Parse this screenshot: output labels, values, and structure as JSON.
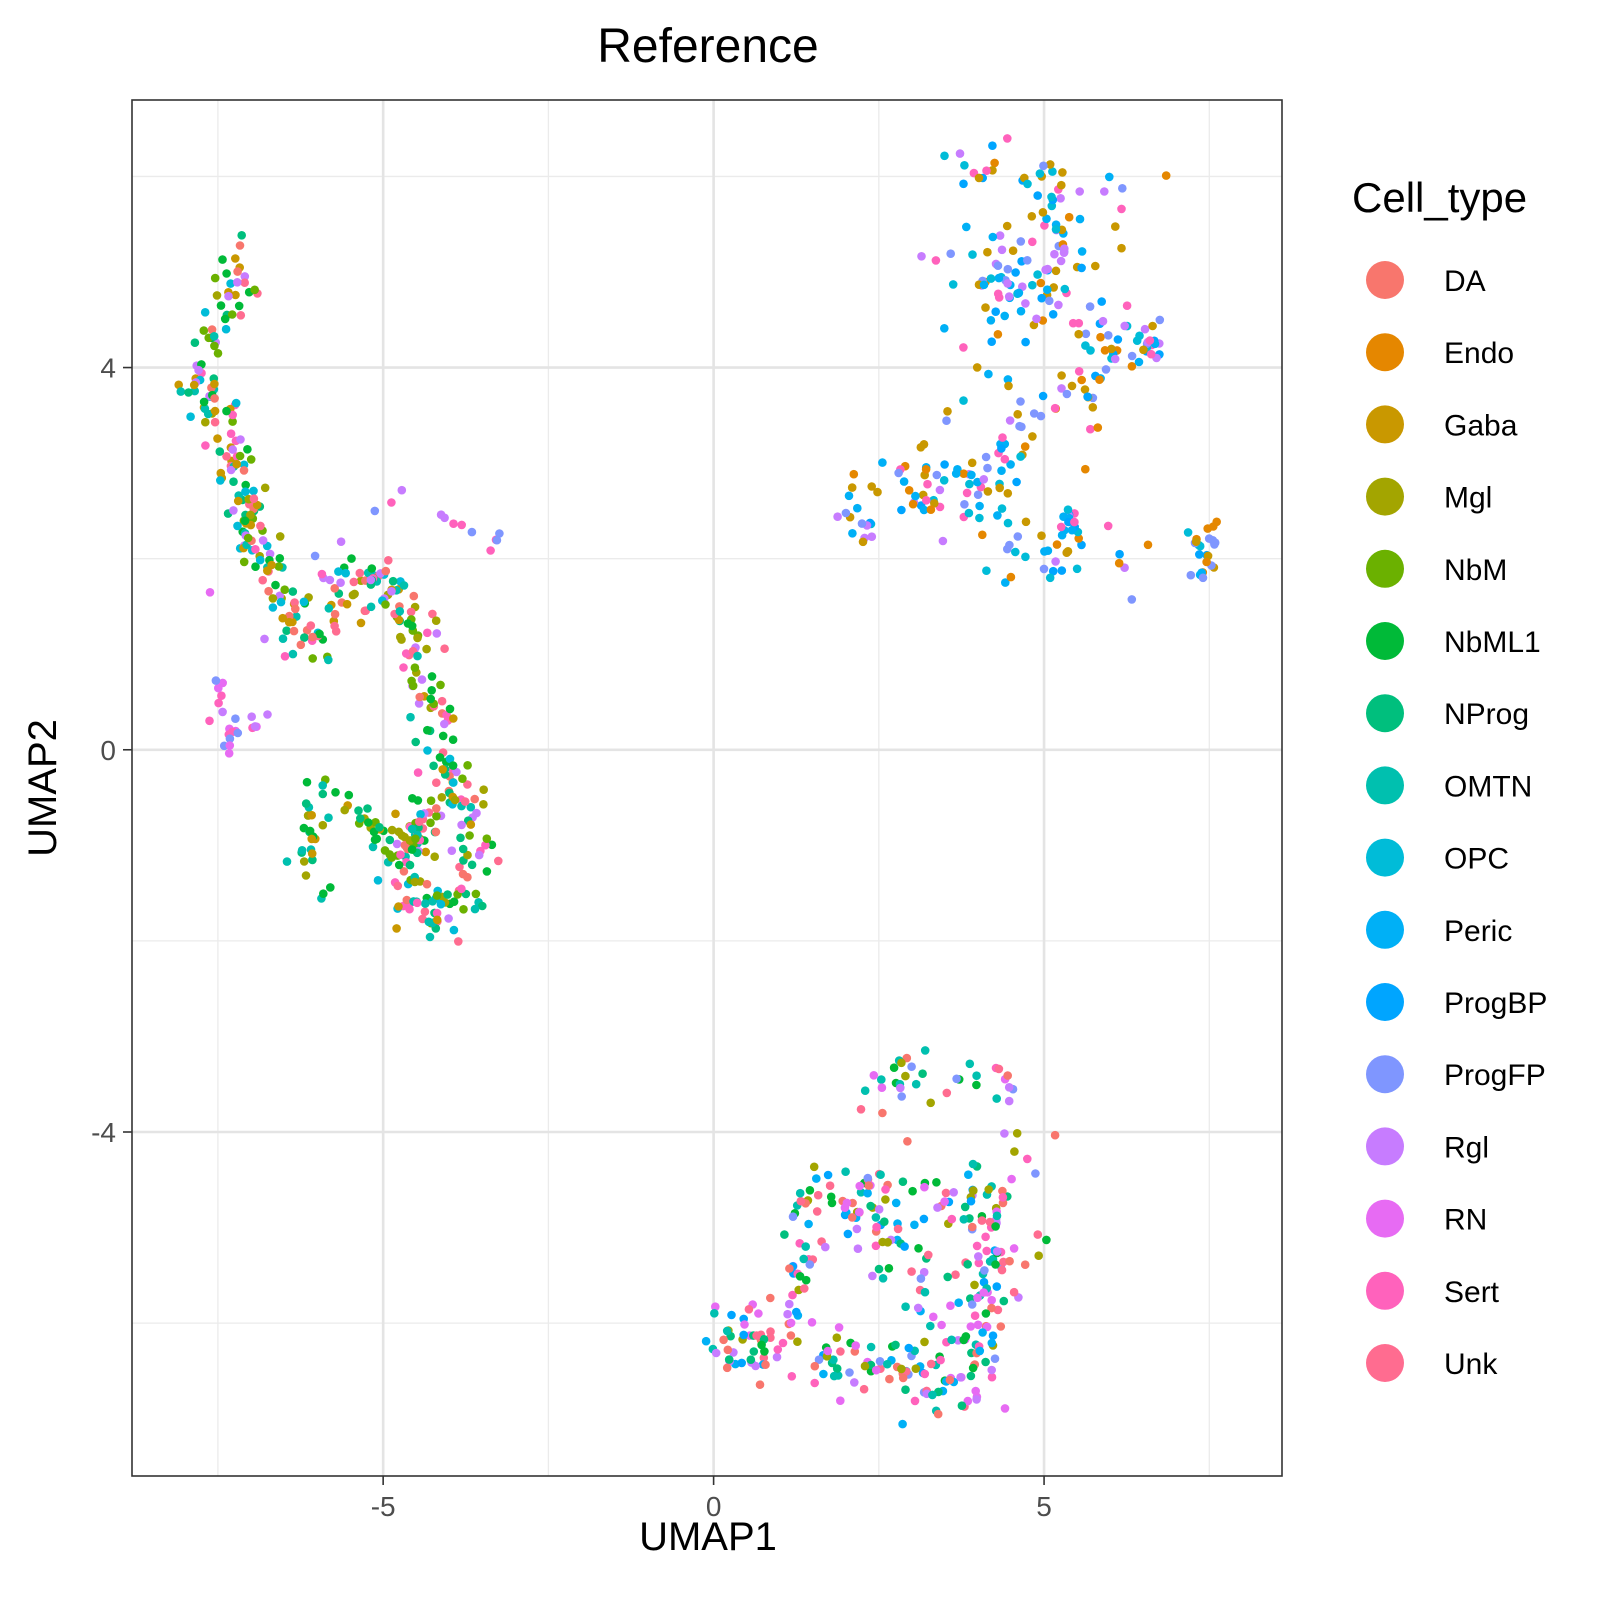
{
  "chart_data": {
    "type": "scatter",
    "title": "Reference",
    "xlabel": "UMAP1",
    "ylabel": "UMAP2",
    "xlim": [
      -8.8,
      8.6
    ],
    "ylim": [
      -7.6,
      6.8
    ],
    "xticks": [
      -5,
      0,
      5
    ],
    "xtick_labels": [
      "-5",
      "0",
      "5"
    ],
    "yticks": [
      -4,
      0,
      4
    ],
    "ytick_labels": [
      "-4",
      "0",
      "4"
    ],
    "grid": true,
    "legend": {
      "title": "Cell_type",
      "position": "right",
      "entries": [
        {
          "name": "DA",
          "color": "#F8766D"
        },
        {
          "name": "Endo",
          "color": "#E58700"
        },
        {
          "name": "Gaba",
          "color": "#C99800"
        },
        {
          "name": "Mgl",
          "color": "#A3A500"
        },
        {
          "name": "NbM",
          "color": "#6BB100"
        },
        {
          "name": "NbML1",
          "color": "#00BA38"
        },
        {
          "name": "NProg",
          "color": "#00BF7D"
        },
        {
          "name": "OMTN",
          "color": "#00C0AF"
        },
        {
          "name": "OPC",
          "color": "#00BCD8"
        },
        {
          "name": "Peric",
          "color": "#00B0F6"
        },
        {
          "name": "ProgBP",
          "color": "#00A5FF"
        },
        {
          "name": "ProgFP",
          "color": "#7F96FF"
        },
        {
          "name": "Rgl",
          "color": "#C77CFF"
        },
        {
          "name": "RN",
          "color": "#E76BF3"
        },
        {
          "name": "Sert",
          "color": "#FF62BC"
        },
        {
          "name": "Unk",
          "color": "#FF6C90"
        }
      ]
    },
    "clusters": [
      {
        "region": "left",
        "palette": [
          "DA",
          "Gaba",
          "Mgl",
          "NbM",
          "NbML1",
          "NProg",
          "OMTN",
          "Unk",
          "Sert",
          "Rgl",
          "OPC"
        ],
        "path": [
          [
            -7.0,
            5.1
          ],
          [
            -7.6,
            4.5
          ],
          [
            -7.8,
            3.9
          ],
          [
            -7.4,
            3.3
          ],
          [
            -7.1,
            2.7
          ],
          [
            -7.0,
            2.2
          ],
          [
            -6.6,
            1.6
          ],
          [
            -6.2,
            1.1
          ],
          [
            -5.8,
            1.5
          ],
          [
            -5.2,
            1.8
          ],
          [
            -4.8,
            1.7
          ],
          [
            -4.5,
            1.2
          ],
          [
            -4.3,
            0.5
          ],
          [
            -4.1,
            -0.1
          ],
          [
            -3.8,
            -0.6
          ],
          [
            -3.6,
            -1.3
          ],
          [
            -3.8,
            -1.7
          ],
          [
            -4.5,
            -1.7
          ],
          [
            -4.6,
            -1.3
          ],
          [
            -4.4,
            -0.8
          ]
        ],
        "count": 460,
        "spread": 0.17
      },
      {
        "region": "left-arm",
        "palette": [
          "NbM",
          "NbML1",
          "OMTN",
          "Mgl",
          "Gaba",
          "NProg"
        ],
        "path": [
          [
            -6.1,
            -0.3
          ],
          [
            -6.0,
            -0.8
          ],
          [
            -6.2,
            -1.1
          ],
          [
            -6.0,
            -1.5
          ],
          [
            -5.6,
            -0.5
          ],
          [
            -5.2,
            -0.8
          ],
          [
            -4.9,
            -1.0
          ]
        ],
        "count": 55,
        "spread": 0.12
      },
      {
        "region": "left-small",
        "palette": [
          "Rgl",
          "Sert",
          "RN",
          "ProgFP"
        ],
        "path": [
          [
            -7.7,
            1.7
          ],
          [
            -7.4,
            0.0
          ],
          [
            -7.2,
            0.2
          ],
          [
            -6.8,
            0.4
          ],
          [
            -5.4,
            2.7
          ],
          [
            -3.3,
            2.2
          ]
        ],
        "count": 40,
        "spread": 0.08
      },
      {
        "region": "upper-right",
        "palette": [
          "Peric",
          "OPC",
          "Endo",
          "Rgl",
          "ProgBP",
          "Gaba",
          "Sert",
          "ProgFP"
        ],
        "path": [
          [
            3.5,
            6.1
          ],
          [
            4.8,
            6.1
          ],
          [
            5.2,
            5.7
          ],
          [
            5.3,
            5.0
          ],
          [
            4.6,
            5.0
          ],
          [
            3.9,
            4.9
          ],
          [
            5.6,
            4.5
          ],
          [
            6.3,
            4.3
          ],
          [
            6.6,
            4.3
          ],
          [
            5.8,
            3.9
          ],
          [
            4.5,
            3.4
          ],
          [
            4.3,
            2.8
          ],
          [
            3.5,
            2.8
          ],
          [
            2.9,
            2.7
          ],
          [
            5.3,
            2.3
          ],
          [
            5.6,
            2.3
          ],
          [
            4.0,
            1.9
          ],
          [
            7.3,
            2.0
          ],
          [
            7.6,
            2.2
          ],
          [
            2.5,
            4.9
          ],
          [
            6.8,
            6.1
          ],
          [
            2.2,
            2.5
          ]
        ],
        "count": 360,
        "spread": 0.16
      },
      {
        "region": "lower-right",
        "palette": [
          "ProgBP",
          "Peric",
          "ProgFP",
          "Rgl",
          "Unk",
          "Sert",
          "NbML1",
          "NProg",
          "OMTN",
          "DA",
          "RN",
          "Mgl"
        ],
        "path": [
          [
            1.5,
            -4.5
          ],
          [
            1.4,
            -5.0
          ],
          [
            1.3,
            -5.8
          ],
          [
            0.6,
            -6.3
          ],
          [
            0.1,
            -6.2
          ],
          [
            1.3,
            -6.4
          ],
          [
            2.0,
            -6.4
          ],
          [
            2.8,
            -6.5
          ],
          [
            3.4,
            -6.5
          ],
          [
            3.9,
            -6.7
          ],
          [
            4.0,
            -6.1
          ],
          [
            4.3,
            -5.7
          ],
          [
            4.2,
            -5.0
          ],
          [
            4.3,
            -4.6
          ],
          [
            3.6,
            -4.7
          ],
          [
            2.7,
            -4.6
          ],
          [
            2.3,
            -4.7
          ],
          [
            2.0,
            -5.0
          ],
          [
            3.2,
            -5.5
          ],
          [
            3.4,
            -6.0
          ],
          [
            5.2,
            -4.8
          ],
          [
            4.5,
            -3.5
          ],
          [
            2.6,
            -3.5
          ]
        ],
        "count": 400,
        "spread": 0.19
      }
    ],
    "seed": 20240611
  }
}
